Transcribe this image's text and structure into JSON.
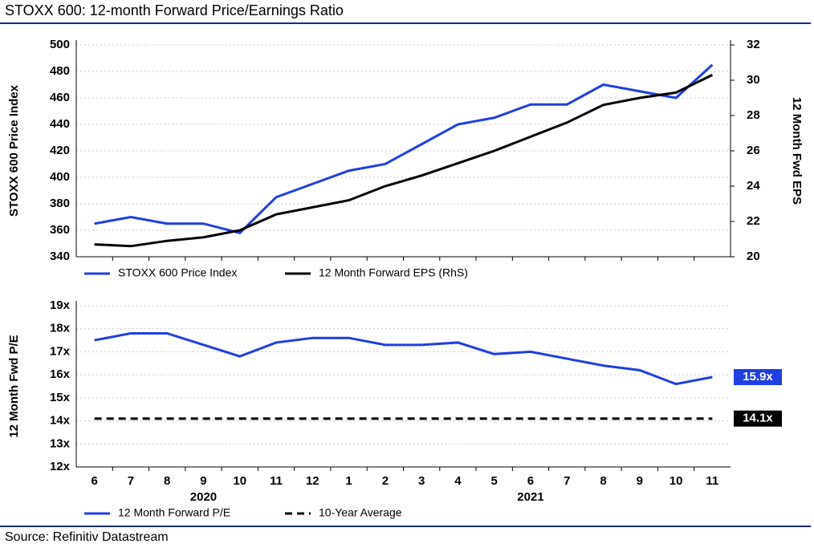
{
  "title": "STOXX 600: 12-month Forward Price/Earnings Ratio",
  "source": "Source: Refinitiv Datastream",
  "chart_data": [
    {
      "type": "line",
      "ylabel": "STOXX 600 Price Index",
      "y2label": "12 Month Fwd EPS",
      "ylim": [
        340,
        500
      ],
      "yticks": [
        340,
        360,
        380,
        400,
        420,
        440,
        460,
        480,
        500
      ],
      "y2lim": [
        20,
        32
      ],
      "y2ticks": [
        20,
        22,
        24,
        26,
        28,
        30,
        32
      ],
      "grid": true,
      "legend": "bottom",
      "series": [
        {
          "name": "STOXX 600 Price Index",
          "color": "#1f3fe0",
          "style": "solid",
          "values": [
            365,
            370,
            365,
            365,
            358,
            385,
            395,
            405,
            410,
            425,
            440,
            445,
            455,
            455,
            470,
            465,
            460,
            485
          ]
        },
        {
          "name": "12 Month Forward EPS (RhS)",
          "color": "#000000",
          "style": "solid",
          "axis": "y2",
          "values": [
            20.7,
            20.6,
            20.9,
            21.1,
            21.5,
            22.4,
            22.8,
            23.2,
            24.0,
            24.6,
            25.3,
            26.0,
            26.8,
            27.6,
            28.6,
            29.0,
            29.3,
            30.3
          ]
        }
      ]
    },
    {
      "type": "line",
      "ylabel": "12 Month Fwd P/E",
      "categories": [
        "6",
        "7",
        "8",
        "9",
        "10",
        "11",
        "12",
        "1",
        "2",
        "3",
        "4",
        "5",
        "6",
        "7",
        "8",
        "9",
        "10",
        "11"
      ],
      "groups": [
        {
          "label": "2020",
          "count": 7
        },
        {
          "label": "2021",
          "count": 11
        }
      ],
      "ylim": [
        12,
        19
      ],
      "yticks": [
        {
          "value": 12,
          "label": "12x"
        },
        {
          "value": 13,
          "label": "13x"
        },
        {
          "value": 14,
          "label": "14x"
        },
        {
          "value": 15,
          "label": "15x"
        },
        {
          "value": 16,
          "label": "16x"
        },
        {
          "value": 17,
          "label": "17x"
        },
        {
          "value": 18,
          "label": "18x"
        },
        {
          "value": 19,
          "label": "19x"
        }
      ],
      "grid": true,
      "legend": "bottom",
      "series": [
        {
          "name": "12 Month Forward P/E",
          "color": "#1f3fe0",
          "style": "solid",
          "end_label": "15.9x",
          "values": [
            17.5,
            17.8,
            17.8,
            17.3,
            16.8,
            17.4,
            17.6,
            17.6,
            17.3,
            17.3,
            17.4,
            16.9,
            17.0,
            16.7,
            16.4,
            16.2,
            15.6,
            15.9
          ]
        },
        {
          "name": "10-Year Average",
          "color": "#000000",
          "style": "dashed",
          "end_label": "14.1x",
          "values": [
            14.1,
            14.1,
            14.1,
            14.1,
            14.1,
            14.1,
            14.1,
            14.1,
            14.1,
            14.1,
            14.1,
            14.1,
            14.1,
            14.1,
            14.1,
            14.1,
            14.1,
            14.1
          ]
        }
      ]
    }
  ]
}
